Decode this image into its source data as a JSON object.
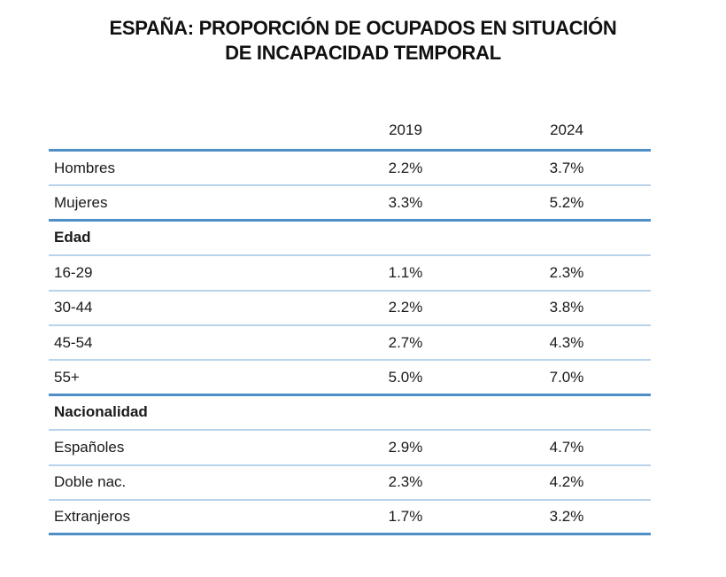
{
  "title": {
    "line1": "ESPAÑA: PROPORCIÓN DE OCUPADOS EN SITUACIÓN",
    "line2": "DE INCAPACIDAD TEMPORAL"
  },
  "columns": [
    "",
    "2019",
    "2024"
  ],
  "rows": [
    {
      "label": "Hombres",
      "v2019": "2.2%",
      "v2024": "3.7%"
    },
    {
      "label": "Mujeres",
      "v2019": "3.3%",
      "v2024": "5.2%",
      "thick": true
    },
    {
      "label": "Edad",
      "section": true
    },
    {
      "label": "16-29",
      "v2019": "1.1%",
      "v2024": "2.3%"
    },
    {
      "label": "30-44",
      "v2019": "2.2%",
      "v2024": "3.8%"
    },
    {
      "label": "45-54",
      "v2019": "2.7%",
      "v2024": "4.3%"
    },
    {
      "label": "55+",
      "v2019": "5.0%",
      "v2024": "7.0%",
      "thick": true
    },
    {
      "label": "Nacionalidad",
      "section": true
    },
    {
      "label": "Españoles",
      "v2019": "2.9%",
      "v2024": "4.7%"
    },
    {
      "label": "Doble nac.",
      "v2019": "2.3%",
      "v2024": "4.2%"
    },
    {
      "label": "Extranjeros",
      "v2019": "1.7%",
      "v2024": "3.2%",
      "thick": true
    }
  ],
  "colors": {
    "rule_thick": "#4d8fc6",
    "rule_thin": "#b9d3ea"
  }
}
